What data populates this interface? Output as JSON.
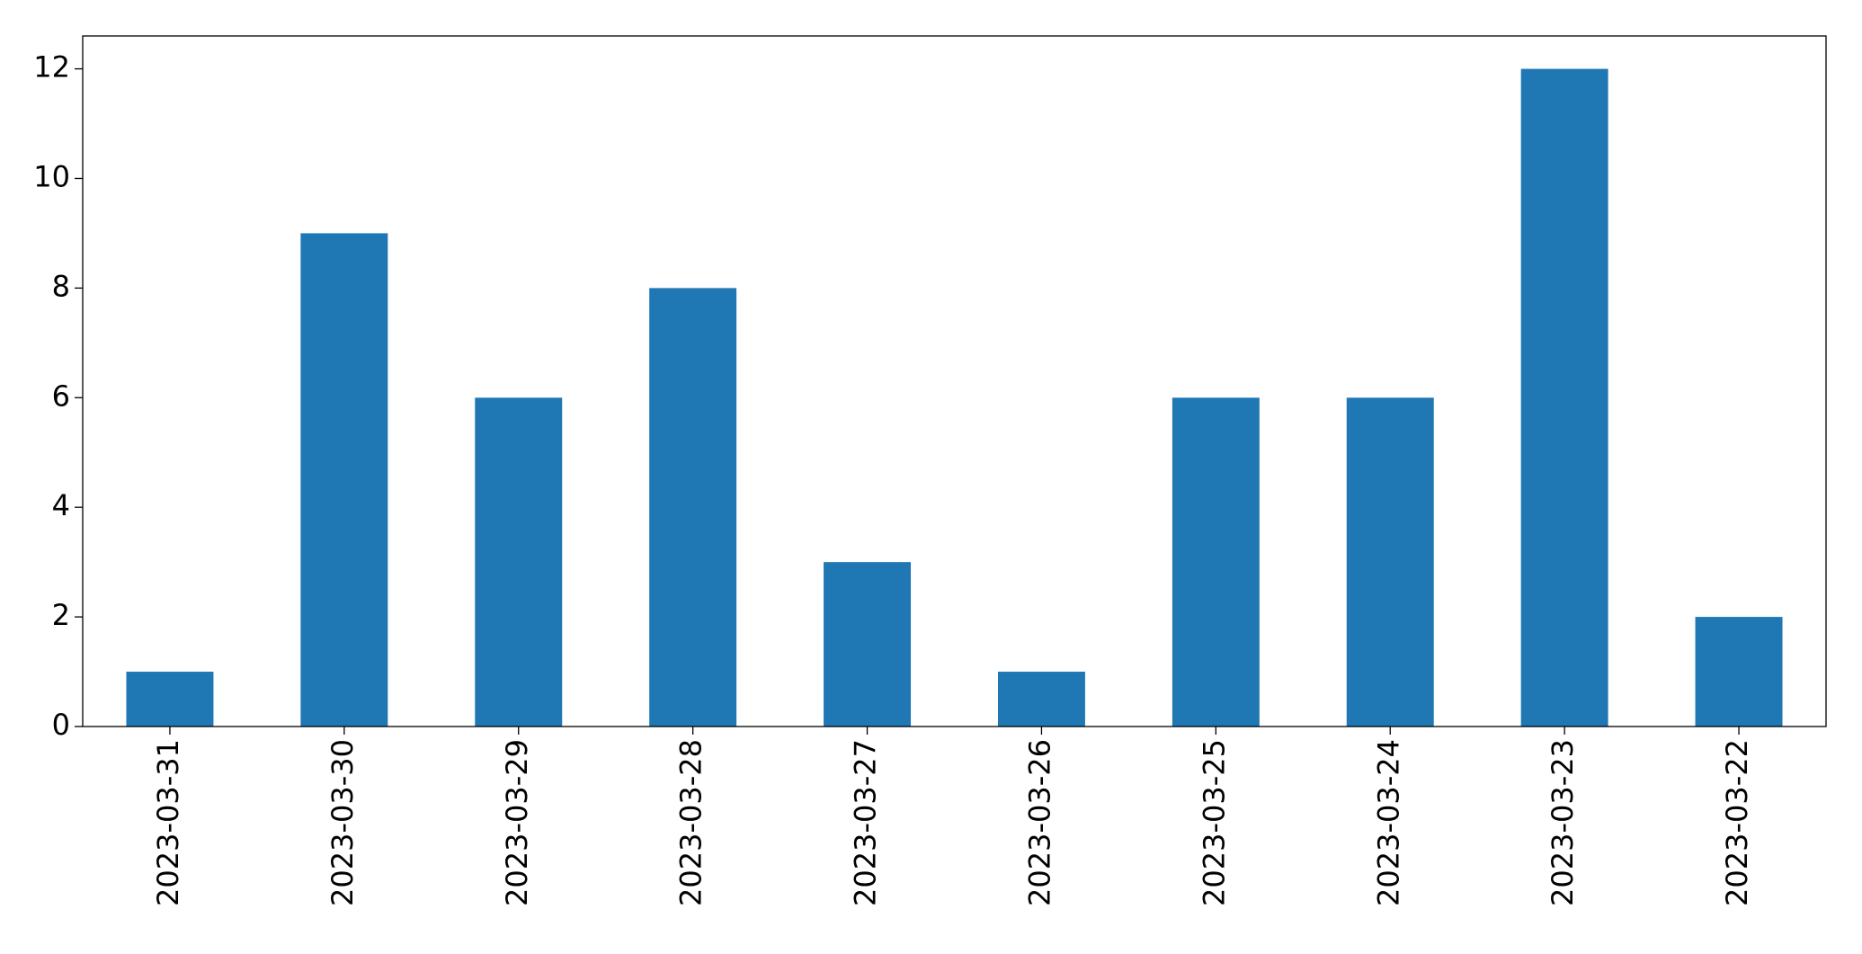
{
  "chart_data": {
    "type": "bar",
    "categories": [
      "2023-03-31",
      "2023-03-30",
      "2023-03-29",
      "2023-03-28",
      "2023-03-27",
      "2023-03-26",
      "2023-03-25",
      "2023-03-24",
      "2023-03-23",
      "2023-03-22"
    ],
    "values": [
      1,
      9,
      6,
      8,
      3,
      1,
      6,
      6,
      12,
      2
    ],
    "color": "#1f77b4",
    "ylim": [
      0,
      12.6
    ],
    "yticks": [
      0,
      2,
      4,
      6,
      8,
      10,
      12
    ],
    "grid": false
  }
}
